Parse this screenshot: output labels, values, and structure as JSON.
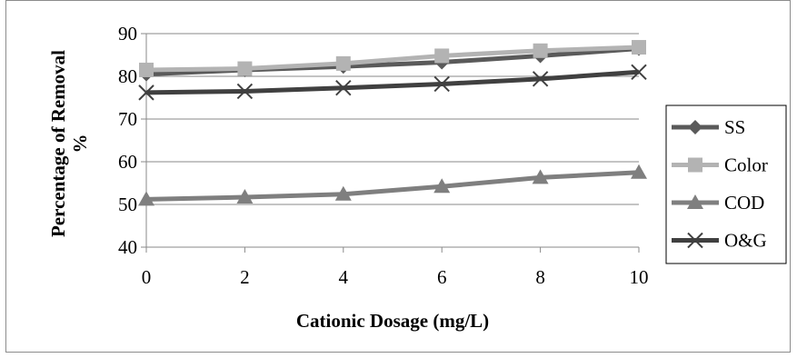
{
  "chart_data": {
    "type": "line",
    "xlabel": "Cationic Dosage (mg/L)",
    "ylabel_line1": "Percentage of Removal",
    "ylabel_line2": "%",
    "x": [
      0,
      2,
      4,
      6,
      8,
      10
    ],
    "xlim": [
      0,
      10
    ],
    "ylim": [
      40,
      90
    ],
    "x_ticks": [
      0,
      2,
      4,
      6,
      8,
      10
    ],
    "y_ticks": [
      40,
      50,
      60,
      70,
      80,
      90
    ],
    "grid": "horizontal",
    "legend_position": "right",
    "series": [
      {
        "name": "SS",
        "marker": "diamond",
        "color": "#5a5a5a",
        "values": [
          80.5,
          81.5,
          82.3,
          83.3,
          84.8,
          86.5
        ]
      },
      {
        "name": "Color",
        "marker": "square",
        "color": "#b3b3b3",
        "values": [
          81.5,
          81.8,
          83.0,
          84.8,
          86.0,
          86.8
        ]
      },
      {
        "name": "COD",
        "marker": "triangle",
        "color": "#7f7f7f",
        "values": [
          51.2,
          51.7,
          52.4,
          54.2,
          56.3,
          57.5
        ]
      },
      {
        "name": "O&G",
        "marker": "x",
        "color": "#404040",
        "values": [
          76.2,
          76.5,
          77.3,
          78.2,
          79.4,
          81.0
        ]
      }
    ]
  }
}
